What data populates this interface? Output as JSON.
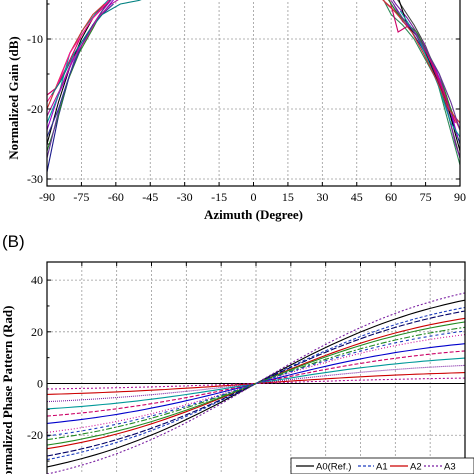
{
  "panel_b_label": "(B)",
  "chart_data": [
    {
      "type": "line",
      "title": "",
      "xlabel": "Azimuth (Degree)",
      "ylabel": "Normalized Gain (dB)",
      "xlim": [
        -90,
        90
      ],
      "ylim": [
        -31,
        -3
      ],
      "grid": true,
      "x_ticks": [
        "-90",
        "-75",
        "-60",
        "-45",
        "-30",
        "-15",
        "0",
        "15",
        "30",
        "45",
        "60",
        "75",
        "90"
      ],
      "y_ticks": [
        "-10",
        "-20",
        "-30"
      ],
      "colors": [
        "#1a1a8c",
        "#000000",
        "#cc0066",
        "#9900cc",
        "#228b22",
        "#00a0a0",
        "#cc3333",
        "#663399",
        "#ff1493",
        "#333399",
        "#008080",
        "#b0179b",
        "#444444",
        "#7a1fa2",
        "#2e8b57",
        "#d81b60"
      ],
      "series": [
        {
          "x": [
            -90,
            -85,
            -80,
            -75,
            -70,
            -66,
            -62
          ],
          "y": [
            -29,
            -21,
            -15,
            -11,
            -8,
            -6,
            -4
          ]
        },
        {
          "x": [
            -90,
            -85,
            -80,
            -75,
            -70,
            -65,
            -60,
            -58
          ],
          "y": [
            -25,
            -19,
            -14,
            -10,
            -7,
            -5,
            -4,
            -3
          ]
        },
        {
          "x": [
            -90,
            -86,
            -80,
            -75,
            -70,
            -64,
            -60
          ],
          "y": [
            -18,
            -17,
            -13,
            -9.5,
            -7,
            -5,
            -3.5
          ]
        },
        {
          "x": [
            -90,
            -85,
            -80,
            -75,
            -70,
            -65,
            -60
          ],
          "y": [
            -23,
            -18,
            -14,
            -10.5,
            -8,
            -6,
            -4
          ]
        },
        {
          "x": [
            -90,
            -86,
            -81,
            -76,
            -70,
            -66
          ],
          "y": [
            -26,
            -22,
            -16,
            -12,
            -8.5,
            -6
          ]
        },
        {
          "x": [
            -90,
            -85,
            -80,
            -74,
            -68,
            -62
          ],
          "y": [
            -22,
            -18,
            -12,
            -8.5,
            -6,
            -4
          ]
        },
        {
          "x": [
            -90,
            -85,
            -80,
            -75,
            -70,
            -65
          ],
          "y": [
            -20,
            -16,
            -12,
            -9,
            -6.5,
            -5
          ]
        },
        {
          "x": [
            -90,
            -84,
            -78,
            -72,
            -66,
            -61
          ],
          "y": [
            -27,
            -19,
            -13,
            -9,
            -6,
            -4
          ]
        },
        {
          "x": [
            -90,
            -86,
            -80,
            -76,
            -70,
            -63
          ],
          "y": [
            -19,
            -17,
            -12,
            -10,
            -7,
            -4.5
          ]
        },
        {
          "x": [
            -90,
            -85,
            -80,
            -75,
            -70,
            -66,
            -61
          ],
          "y": [
            -24,
            -20,
            -15,
            -11,
            -8,
            -6.5,
            -5
          ]
        },
        {
          "x": [
            -88,
            -84,
            -78,
            -72,
            -66,
            -58,
            -50,
            -46
          ],
          "y": [
            -18,
            -16,
            -12,
            -9,
            -6.5,
            -5,
            -4.5,
            -4
          ]
        },
        {
          "x": [
            -90,
            -84,
            -79,
            -73,
            -68,
            -62,
            -57
          ],
          "y": [
            -21,
            -17,
            -13,
            -10,
            -7,
            -5,
            -4
          ]
        },
        {
          "x": [
            62,
            66,
            70,
            75,
            80,
            85,
            90
          ],
          "y": [
            -4,
            -6,
            -8,
            -11,
            -15,
            -21,
            -27
          ]
        },
        {
          "x": [
            58,
            62,
            67,
            72,
            77,
            83,
            88,
            90
          ],
          "y": [
            -3,
            -5,
            -7,
            -9.5,
            -13,
            -18,
            -25,
            -27
          ]
        },
        {
          "x": [
            56,
            60,
            65,
            70,
            75,
            80,
            85,
            90
          ],
          "y": [
            -4,
            -6.5,
            -8,
            -10,
            -13,
            -16,
            -22,
            -28
          ]
        },
        {
          "x": [
            54,
            58,
            63,
            68,
            74,
            80,
            86,
            90
          ],
          "y": [
            -3.5,
            -5,
            -6.5,
            -8,
            -11,
            -15,
            -20,
            -23
          ]
        },
        {
          "x": [
            60,
            64,
            69,
            73,
            78,
            84,
            90
          ],
          "y": [
            -5,
            -7,
            -9,
            -11,
            -14,
            -19,
            -25
          ]
        },
        {
          "x": [
            63,
            67,
            71,
            75,
            80,
            85,
            90
          ],
          "y": [
            -4,
            -8,
            -9.5,
            -12,
            -16,
            -20,
            -26
          ]
        },
        {
          "x": [
            59,
            63,
            68,
            72,
            77,
            82,
            88
          ],
          "y": [
            -4,
            -9,
            -8,
            -10,
            -13,
            -17,
            -22
          ]
        },
        {
          "x": [
            61,
            65,
            69,
            74,
            79,
            84,
            89
          ],
          "y": [
            -5,
            -7.5,
            -8.5,
            -10.5,
            -14,
            -18,
            -24
          ]
        },
        {
          "x": [
            57,
            62,
            66,
            71,
            76,
            81,
            87
          ],
          "y": [
            -3.5,
            -6,
            -7.5,
            -9,
            -12,
            -15,
            -21
          ]
        },
        {
          "x": [
            64,
            68,
            72,
            76,
            81,
            86,
            90
          ],
          "y": [
            -6,
            -8,
            -10,
            -13,
            -17,
            -22,
            -24
          ]
        },
        {
          "x": [
            55,
            60,
            64,
            69,
            74,
            80,
            85,
            90
          ],
          "y": [
            -4,
            -5.5,
            -7,
            -9,
            -12,
            -16,
            -20,
            -22
          ]
        },
        {
          "x": [
            60,
            65,
            70,
            75,
            81,
            86,
            90
          ],
          "y": [
            -4.5,
            -7,
            -9,
            -11.5,
            -15,
            -19,
            -23
          ]
        }
      ]
    },
    {
      "type": "line",
      "title": "",
      "ylabel": "Normalized Phase Pattern (Rad)",
      "xlim": [
        -90,
        90
      ],
      "ylim": [
        -35,
        47
      ],
      "grid": true,
      "y_ticks": [
        "40",
        "20",
        "0",
        "-20"
      ],
      "legend_position": "bottom-right",
      "series": [
        {
          "name": "A0(Ref.)",
          "color": "#000000",
          "dash": "",
          "slope": 0.46
        },
        {
          "name": "A1",
          "color": "#1f3fbf",
          "dash": "3,2",
          "slope": 0.42
        },
        {
          "name": "A2",
          "color": "#cc0000",
          "dash": "",
          "slope": 0.36
        },
        {
          "name": "A3",
          "color": "#7a1fa2",
          "dash": "2,2",
          "slope": 0.5
        },
        {
          "color": "#228b22",
          "dash": "6,2,2,2",
          "slope": 0.31
        },
        {
          "color": "#d0109b",
          "dash": "1,2",
          "slope": 0.27
        },
        {
          "color": "#0000cc",
          "dash": "",
          "slope": 0.22
        },
        {
          "color": "#cc0066",
          "dash": "4,2",
          "slope": 0.18
        },
        {
          "color": "#009999",
          "dash": "",
          "slope": 0.14
        },
        {
          "color": "#7a1fa2",
          "dash": "1,1",
          "slope": 0.1
        },
        {
          "color": "#cc0000",
          "dash": "",
          "slope": 0.06
        },
        {
          "color": "#b0179b",
          "dash": "2,2",
          "slope": 0.03
        },
        {
          "color": "#000066",
          "dash": "6,2",
          "slope": 0.4
        },
        {
          "color": "#228b22",
          "dash": "",
          "slope": 0.34
        },
        {
          "color": "#1f3fbf",
          "dash": "3,3",
          "slope": 0.29
        }
      ]
    }
  ],
  "legend_labels": [
    "A0(Ref.)",
    "A1",
    "A2",
    "A3"
  ]
}
